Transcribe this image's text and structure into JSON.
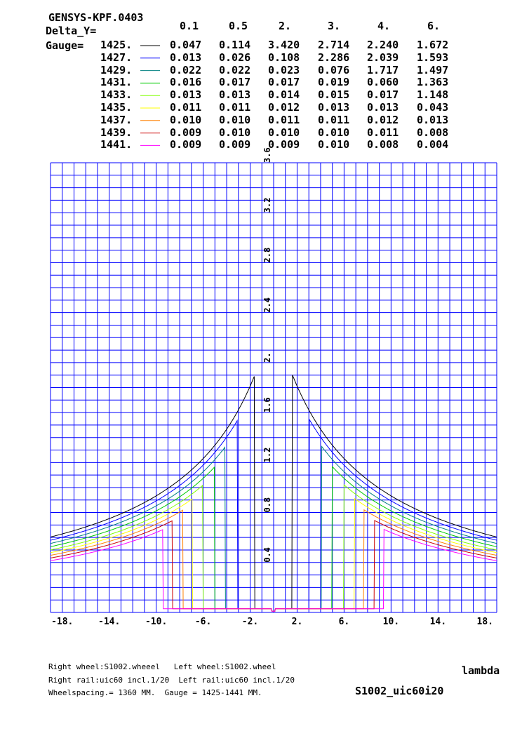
{
  "header": {
    "program": "GENSYS-KPF.0403",
    "delta_label": "Delta_Y=",
    "gauge_label": "Gauge="
  },
  "footer": {
    "line1": "Right wheel:S1002.wheeel   Left wheel:S1002.wheel",
    "line2": "Right rail:uic60 incl.1/20  Left rail:uic60 incl.1/20",
    "line3": "Wheelspacing.= 1360 MM.  Gauge = 1425-1441 MM.",
    "xlabel": "lambda",
    "case_name": "S1002_uic60i20"
  },
  "chart_data": {
    "type": "line",
    "title": "GENSYS-KPF.0403",
    "xlabel": "lambda",
    "ylabel": "",
    "xlim": [
      -19,
      19
    ],
    "ylim": [
      0,
      3.6
    ],
    "grid": true,
    "x_tick_labels": [
      "-18.",
      "-14.",
      "-10.",
      "-6.",
      "-2.",
      "2.",
      "6.",
      "10.",
      "14.",
      "18."
    ],
    "x_ticks": [
      -18,
      -14,
      -10,
      -6,
      -2,
      2,
      6,
      10,
      14,
      18
    ],
    "y_tick_labels": [
      "0.4",
      "0.8",
      "1.2",
      "1.6",
      "2.",
      "2.4",
      "2.8",
      "3.2",
      "3.6"
    ],
    "y_ticks": [
      0.4,
      0.8,
      1.2,
      1.6,
      2.0,
      2.4,
      2.8,
      3.2,
      3.6
    ],
    "table_columns": [
      "0.1",
      "0.5",
      "2.",
      "3.",
      "4.",
      "6."
    ],
    "series": [
      {
        "name": "1425.",
        "color": "#000000",
        "table": [
          "0.047",
          "0.114",
          "3.420",
          "2.714",
          "2.240",
          "1.672"
        ],
        "drop": 1.6,
        "cap": 10.0,
        "scale": 0.7
      },
      {
        "name": "1427.",
        "color": "#0000ff",
        "table": [
          "0.013",
          "0.026",
          "0.108",
          "2.286",
          "2.039",
          "1.593"
        ],
        "drop": 3.05,
        "cap": 2.37,
        "scale": 0.67
      },
      {
        "name": "1429.",
        "color": "#008080",
        "table": [
          "0.022",
          "0.022",
          "0.023",
          "0.076",
          "1.717",
          "1.497"
        ],
        "drop": 4.1,
        "cap": 1.72,
        "scale": 0.64
      },
      {
        "name": "1431.",
        "color": "#00cc00",
        "table": [
          "0.016",
          "0.017",
          "0.017",
          "0.019",
          "0.060",
          "1.363"
        ],
        "drop": 5.0,
        "cap": 1.37,
        "scale": 0.61
      },
      {
        "name": "1433.",
        "color": "#80ff00",
        "table": [
          "0.013",
          "0.013",
          "0.014",
          "0.015",
          "0.017",
          "1.148"
        ],
        "drop": 6.0,
        "cap": 1.14,
        "scale": 0.58
      },
      {
        "name": "1435.",
        "color": "#ffff00",
        "table": [
          "0.011",
          "0.011",
          "0.012",
          "0.013",
          "0.013",
          "0.043"
        ],
        "drop": 6.9,
        "cap": 1.0,
        "scale": 0.555
      },
      {
        "name": "1437.",
        "color": "#ff8000",
        "table": [
          "0.010",
          "0.010",
          "0.011",
          "0.011",
          "0.012",
          "0.013"
        ],
        "drop": 7.7,
        "cap": 0.9,
        "scale": 0.53
      },
      {
        "name": "1439.",
        "color": "#cc0000",
        "table": [
          "0.009",
          "0.010",
          "0.010",
          "0.010",
          "0.011",
          "0.008"
        ],
        "drop": 8.6,
        "cap": 0.84,
        "scale": 0.505
      },
      {
        "name": "1441.",
        "color": "#ff00ff",
        "table": [
          "0.009",
          "0.009",
          "0.009",
          "0.010",
          "0.008",
          "0.004"
        ],
        "drop": 9.4,
        "cap": 0.77,
        "scale": 0.48
      }
    ]
  }
}
